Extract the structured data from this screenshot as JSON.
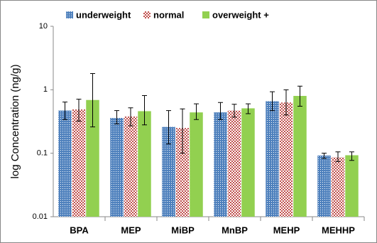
{
  "chart_data": {
    "type": "bar",
    "y_label": "log Concentration (ng/g)",
    "categories": [
      "BPA",
      "MEP",
      "MiBP",
      "MnBP",
      "MEHP",
      "MEHHP"
    ],
    "series": [
      {
        "name": "underweight",
        "color": "#4f81bd",
        "pattern": "dots",
        "values": [
          0.47,
          0.36,
          0.26,
          0.44,
          0.66,
          0.092
        ],
        "error_low": [
          0.34,
          0.29,
          0.14,
          0.34,
          0.47,
          0.083
        ],
        "error_high": [
          0.64,
          0.47,
          0.47,
          0.63,
          0.93,
          0.1
        ]
      },
      {
        "name": "normal",
        "color": "#c0504d",
        "pattern": "checker",
        "values": [
          0.49,
          0.38,
          0.25,
          0.47,
          0.63,
          0.086
        ],
        "error_low": [
          0.32,
          0.27,
          0.1,
          0.37,
          0.4,
          0.074
        ],
        "error_high": [
          0.71,
          0.52,
          0.5,
          0.59,
          1.0,
          0.105
        ]
      },
      {
        "name": "overweight +",
        "color": "#92d050",
        "pattern": "solid",
        "values": [
          0.69,
          0.46,
          0.44,
          0.51,
          0.8,
          0.093
        ],
        "error_low": [
          0.26,
          0.28,
          0.34,
          0.42,
          0.55,
          0.077
        ],
        "error_high": [
          1.8,
          0.81,
          0.6,
          0.6,
          1.14,
          0.105
        ]
      }
    ],
    "log_scale": true,
    "ylim": [
      0.01,
      10
    ],
    "yticks": [
      0.01,
      0.1,
      1,
      10
    ],
    "grid": false,
    "legend": "top"
  }
}
